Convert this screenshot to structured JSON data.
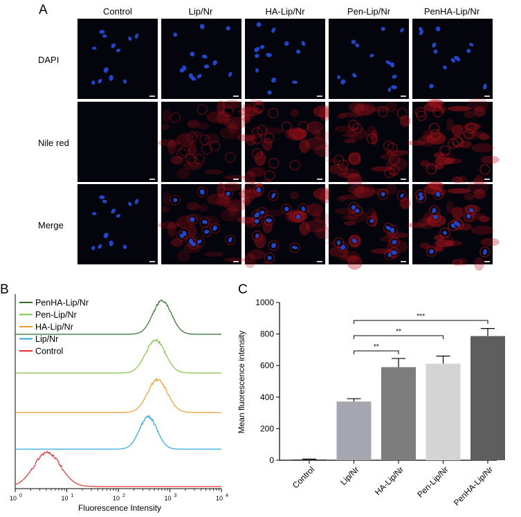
{
  "panel_a": {
    "letter": "A",
    "columns": [
      "Control",
      "Lip/Nr",
      "HA-Lip/Nr",
      "Pen-Lip/Nr",
      "PenHA-Lip/Nr"
    ],
    "rows": [
      "DAPI",
      "Nile red",
      "Merge"
    ],
    "colors": {
      "background": "#04040c",
      "nucleus": "#2346c8",
      "cytoplasm": "#b8141c"
    },
    "red_signal_level": [
      0.0,
      0.45,
      0.6,
      0.62,
      0.85
    ]
  },
  "panel_b": {
    "letter": "B",
    "legend": [
      {
        "label": "PenHA-Lip/Nr",
        "color": "#2e6b2a"
      },
      {
        "label": "Pen-Lip/Nr",
        "color": "#7fc241"
      },
      {
        "label": "HA-Lip/Nr",
        "color": "#f39a2c"
      },
      {
        "label": "Lip/Nr",
        "color": "#2aa6dc"
      },
      {
        "label": "Control",
        "color": "#e03030"
      }
    ],
    "xlabel": "Fluorescence Intensity",
    "tick_base": [
      "10",
      "10",
      "10",
      "10",
      "10"
    ],
    "tick_exp": [
      "0",
      "1",
      "2",
      "3",
      "4"
    ]
  },
  "chart_data": {
    "type": "bar",
    "panel_letter": "C",
    "categories": [
      "Control",
      "Lip/Nr",
      "HA-Lip/Nr",
      "Pen-Lip/Nr",
      "PenHA-Lip/Nr"
    ],
    "values": [
      5,
      372,
      590,
      612,
      787
    ],
    "errors": [
      2,
      18,
      55,
      48,
      48
    ],
    "colors": [
      "#3a3a3a",
      "#a6a6b0",
      "#7d7d7d",
      "#d4d4d4",
      "#5e5e5e"
    ],
    "ylabel": "Mean fluorescence intensity",
    "ylim": [
      0,
      1000
    ],
    "yticks": [
      0,
      200,
      400,
      600,
      800,
      1000
    ],
    "significance": [
      {
        "from": 1,
        "to": 2,
        "label": "**"
      },
      {
        "from": 1,
        "to": 3,
        "label": "**"
      },
      {
        "from": 1,
        "to": 4,
        "label": "***"
      }
    ]
  }
}
